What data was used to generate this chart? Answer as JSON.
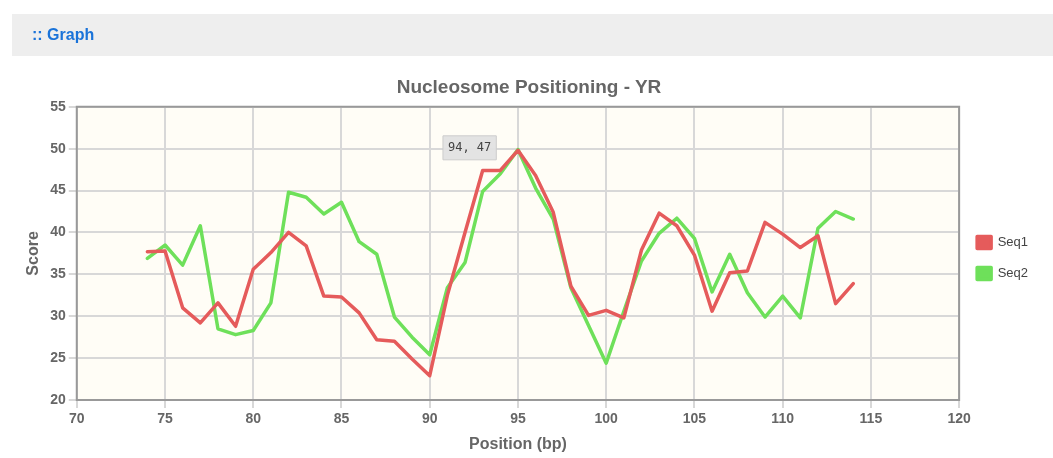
{
  "chart_data": {
    "type": "line",
    "title": "Nucleosome Positioning - YR",
    "xlabel": "Position (bp)",
    "ylabel": "Score",
    "x": [
      74,
      75,
      76,
      77,
      78,
      79,
      80,
      81,
      82,
      83,
      84,
      85,
      86,
      87,
      88,
      89,
      90,
      91,
      92,
      93,
      94,
      95,
      96,
      97,
      98,
      99,
      100,
      101,
      102,
      103,
      104,
      105,
      106,
      107,
      108,
      109,
      110,
      111,
      112,
      113,
      114
    ],
    "series": [
      {
        "name": "Seq1",
        "color": "#e55b5b",
        "values": [
          37.7,
          37.8,
          31,
          29.2,
          31.6,
          28.8,
          35.6,
          37.6,
          40,
          38.4,
          32.4,
          32.3,
          30.4,
          27.2,
          27,
          24.9,
          22.9,
          32.5,
          40,
          47.4,
          47.4,
          49.8,
          46.8,
          42.4,
          33.6,
          30.1,
          30.7,
          29.8,
          37.9,
          42.3,
          40.8,
          37.3,
          30.6,
          35.2,
          35.4,
          41.2,
          39.8,
          38.2,
          39.6,
          31.5,
          33.9
        ]
      },
      {
        "name": "Seq2",
        "color": "#6ee05a",
        "values": [
          36.9,
          38.5,
          36.1,
          40.8,
          28.5,
          27.8,
          28.3,
          31.6,
          44.8,
          44.2,
          42.2,
          43.6,
          38.9,
          37.4,
          29.9,
          27.5,
          25.4,
          33.4,
          36.4,
          44.9,
          47,
          49.9,
          45.3,
          41.6,
          33.4,
          28.9,
          24.4,
          30.6,
          36.6,
          39.9,
          41.7,
          39.3,
          32.9,
          37.4,
          32.8,
          29.9,
          32.4,
          29.8,
          40.5,
          42.5,
          41.6
        ]
      }
    ],
    "xlim": [
      70,
      120
    ],
    "xticks": [
      70,
      75,
      80,
      85,
      90,
      95,
      100,
      105,
      110,
      115,
      120
    ],
    "ylim": [
      20,
      55
    ],
    "yticks": [
      20,
      25,
      30,
      35,
      40,
      45,
      50,
      55
    ],
    "grid": true,
    "legend": "right",
    "marker": "none",
    "line_style": "solid",
    "annotations": [
      ":: Graph",
      {
        "text": "94, 47",
        "x": 94,
        "y": 47
      }
    ]
  }
}
